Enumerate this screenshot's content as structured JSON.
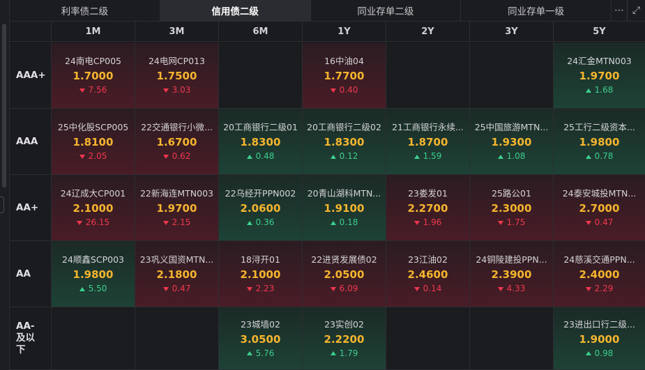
{
  "tabs": [
    {
      "label": "利率债二级",
      "active": false
    },
    {
      "label": "信用债二级",
      "active": true
    },
    {
      "label": "同业存单二级",
      "active": false
    },
    {
      "label": "同业存单一级",
      "active": false
    }
  ],
  "toolbar": {
    "more_glyph": "⋯",
    "expand_glyph": "⤢"
  },
  "columns": [
    "1M",
    "3M",
    "6M",
    "1Y",
    "2Y",
    "3Y",
    "5Y"
  ],
  "colors": {
    "yield": "#f5b52e",
    "up": "#3ccf8e",
    "down": "#f0384e"
  },
  "rows": [
    {
      "label": "AAA+",
      "cells": [
        {
          "name": "24南电CP005",
          "yield": "1.7000",
          "change": "7.56",
          "dir": "down"
        },
        {
          "name": "24电网CP013",
          "yield": "1.7500",
          "change": "3.03",
          "dir": "down"
        },
        null,
        {
          "name": "16中油04",
          "yield": "1.7700",
          "change": "0.40",
          "dir": "down"
        },
        null,
        null,
        {
          "name": "24汇金MTN003",
          "yield": "1.9700",
          "change": "1.68",
          "dir": "up"
        }
      ]
    },
    {
      "label": "AAA",
      "cells": [
        {
          "name": "25中化股SCP005",
          "yield": "1.8100",
          "change": "2.05",
          "dir": "down"
        },
        {
          "name": "22交通银行小微...",
          "yield": "1.6700",
          "change": "0.62",
          "dir": "down"
        },
        {
          "name": "20工商银行二级01",
          "yield": "1.8300",
          "change": "0.48",
          "dir": "up"
        },
        {
          "name": "20工商银行二级02",
          "yield": "1.8300",
          "change": "0.12",
          "dir": "up"
        },
        {
          "name": "21工商银行永续...",
          "yield": "1.8700",
          "change": "1.59",
          "dir": "up"
        },
        {
          "name": "25中国旅游MTN...",
          "yield": "1.9300",
          "change": "1.08",
          "dir": "up"
        },
        {
          "name": "25工行二级资本...",
          "yield": "1.9800",
          "change": "0.78",
          "dir": "up"
        }
      ]
    },
    {
      "label": "AA+",
      "cells": [
        {
          "name": "24辽成大CP001",
          "yield": "2.1000",
          "change": "26.15",
          "dir": "down"
        },
        {
          "name": "22新海连MTN003",
          "yield": "1.9700",
          "change": "2.15",
          "dir": "down"
        },
        {
          "name": "22乌经开PPN002",
          "yield": "2.0600",
          "change": "0.36",
          "dir": "up"
        },
        {
          "name": "20青山湖科MTN...",
          "yield": "1.9100",
          "change": "0.18",
          "dir": "up"
        },
        {
          "name": "23娄发01",
          "yield": "2.2700",
          "change": "1.96",
          "dir": "down"
        },
        {
          "name": "25路公01",
          "yield": "2.3000",
          "change": "1.75",
          "dir": "down"
        },
        {
          "name": "24泰安城投MTN...",
          "yield": "2.7000",
          "change": "0.47",
          "dir": "down"
        }
      ]
    },
    {
      "label": "AA",
      "cells": [
        {
          "name": "24顺鑫SCP003",
          "yield": "1.9800",
          "change": "5.50",
          "dir": "up"
        },
        {
          "name": "23巩义国资MTN...",
          "yield": "2.1800",
          "change": "0.47",
          "dir": "down"
        },
        {
          "name": "18浔开01",
          "yield": "2.1000",
          "change": "2.23",
          "dir": "down"
        },
        {
          "name": "22进贤发展债02",
          "yield": "2.0500",
          "change": "6.09",
          "dir": "down"
        },
        {
          "name": "23江油02",
          "yield": "2.4600",
          "change": "0.14",
          "dir": "down"
        },
        {
          "name": "24铜陵建投PPN...",
          "yield": "2.3900",
          "change": "4.33",
          "dir": "down"
        },
        {
          "name": "24慈溪交通PPN...",
          "yield": "2.4000",
          "change": "2.29",
          "dir": "down"
        }
      ]
    },
    {
      "label": "AA-及以下",
      "cells": [
        null,
        null,
        {
          "name": "23城墙02",
          "yield": "3.0500",
          "change": "5.76",
          "dir": "up"
        },
        {
          "name": "23实创02",
          "yield": "2.2200",
          "change": "1.79",
          "dir": "up"
        },
        null,
        null,
        {
          "name": "23进出口行二级...",
          "yield": "1.9000",
          "change": "0.98",
          "dir": "up"
        }
      ]
    }
  ]
}
